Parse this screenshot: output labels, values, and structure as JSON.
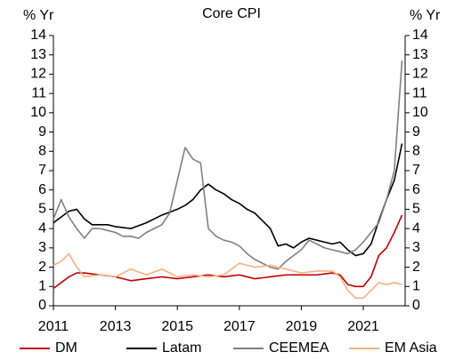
{
  "chart_data": {
    "type": "line",
    "title": "Core CPI",
    "y_label": "% Yr",
    "y2_label": "% Yr",
    "x": [
      2011,
      2011.25,
      2011.5,
      2011.75,
      2012,
      2012.25,
      2012.5,
      2012.75,
      2013,
      2013.25,
      2013.5,
      2013.75,
      2014,
      2014.25,
      2014.5,
      2014.75,
      2015,
      2015.25,
      2015.5,
      2015.75,
      2016,
      2016.25,
      2016.5,
      2016.75,
      2017,
      2017.25,
      2017.5,
      2017.75,
      2018,
      2018.25,
      2018.5,
      2018.75,
      2019,
      2019.25,
      2019.5,
      2019.75,
      2020,
      2020.25,
      2020.5,
      2020.75,
      2021,
      2021.25,
      2021.5,
      2021.75,
      2022,
      2022.25
    ],
    "series": [
      {
        "name": "DM",
        "color": "#c00000",
        "values": [
          0.9,
          1.2,
          1.5,
          1.7,
          1.7,
          1.65,
          1.6,
          1.55,
          1.5,
          1.4,
          1.3,
          1.35,
          1.4,
          1.45,
          1.5,
          1.45,
          1.4,
          1.45,
          1.5,
          1.55,
          1.6,
          1.55,
          1.5,
          1.55,
          1.6,
          1.5,
          1.4,
          1.45,
          1.5,
          1.55,
          1.6,
          1.6,
          1.6,
          1.6,
          1.6,
          1.65,
          1.7,
          1.6,
          1.1,
          1.0,
          1.0,
          1.5,
          2.6,
          3.0,
          3.8,
          4.7
        ]
      },
      {
        "name": "Latam",
        "color": "#000000",
        "values": [
          4.3,
          4.6,
          4.9,
          5.0,
          4.5,
          4.2,
          4.2,
          4.2,
          4.1,
          4.05,
          4.0,
          4.15,
          4.3,
          4.5,
          4.7,
          4.85,
          5.0,
          5.2,
          5.5,
          6.0,
          6.3,
          6.0,
          5.8,
          5.5,
          5.3,
          5.0,
          4.8,
          4.4,
          4.0,
          3.1,
          3.2,
          3.0,
          3.3,
          3.5,
          3.4,
          3.3,
          3.2,
          3.3,
          2.9,
          2.6,
          2.7,
          3.2,
          4.4,
          5.5,
          6.5,
          8.4
        ]
      },
      {
        "name": "CEEMEA",
        "color": "#808080",
        "values": [
          4.5,
          5.5,
          4.6,
          4.0,
          3.5,
          4.0,
          4.0,
          3.9,
          3.8,
          3.6,
          3.6,
          3.5,
          3.8,
          4.0,
          4.2,
          4.8,
          6.5,
          8.2,
          7.6,
          7.4,
          4.0,
          3.6,
          3.4,
          3.3,
          3.1,
          2.7,
          2.4,
          2.2,
          2.0,
          1.9,
          2.3,
          2.6,
          2.9,
          3.4,
          3.2,
          3.0,
          2.9,
          2.8,
          2.7,
          2.9,
          3.3,
          3.8,
          4.3,
          5.5,
          7.0,
          12.7
        ]
      },
      {
        "name": "EM Asia",
        "color": "#f4b183",
        "values": [
          2.1,
          2.3,
          2.7,
          2.0,
          1.5,
          1.55,
          1.6,
          1.55,
          1.5,
          1.7,
          1.9,
          1.75,
          1.6,
          1.75,
          1.9,
          1.7,
          1.5,
          1.55,
          1.6,
          1.55,
          1.5,
          1.55,
          1.6,
          1.9,
          2.2,
          2.1,
          2.0,
          2.05,
          2.1,
          2.0,
          1.9,
          1.8,
          1.7,
          1.75,
          1.8,
          1.8,
          1.8,
          1.5,
          0.8,
          0.4,
          0.4,
          0.8,
          1.2,
          1.1,
          1.2,
          1.1
        ]
      }
    ],
    "xlim": [
      2011,
      2022.35
    ],
    "xticks": [
      2011,
      2013,
      2015,
      2017,
      2019,
      2021
    ],
    "ylim": [
      0,
      14
    ],
    "yticks": [
      0,
      1,
      2,
      3,
      4,
      5,
      6,
      7,
      8,
      9,
      10,
      11,
      12,
      13,
      14
    ],
    "y2lim": [
      0,
      14
    ],
    "y2ticks": [
      0,
      1,
      2,
      3,
      4,
      5,
      6,
      7,
      8,
      9,
      10,
      11,
      12,
      13,
      14
    ],
    "legend": "bottom"
  }
}
